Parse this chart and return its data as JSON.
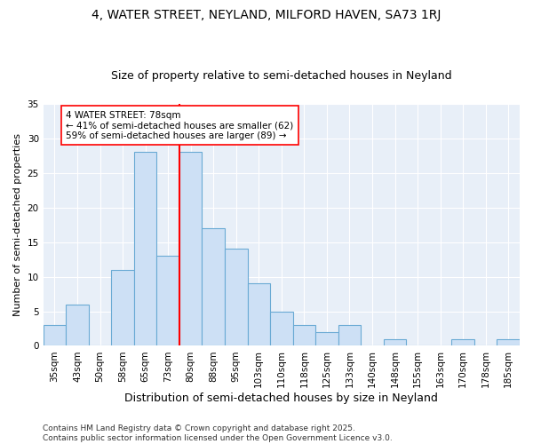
{
  "title1": "4, WATER STREET, NEYLAND, MILFORD HAVEN, SA73 1RJ",
  "title2": "Size of property relative to semi-detached houses in Neyland",
  "xlabel": "Distribution of semi-detached houses by size in Neyland",
  "ylabel": "Number of semi-detached properties",
  "bins": [
    "35sqm",
    "43sqm",
    "50sqm",
    "58sqm",
    "65sqm",
    "73sqm",
    "80sqm",
    "88sqm",
    "95sqm",
    "103sqm",
    "110sqm",
    "118sqm",
    "125sqm",
    "133sqm",
    "140sqm",
    "148sqm",
    "155sqm",
    "163sqm",
    "170sqm",
    "178sqm",
    "185sqm"
  ],
  "values": [
    3,
    6,
    0,
    11,
    28,
    13,
    28,
    17,
    14,
    9,
    5,
    3,
    2,
    3,
    0,
    1,
    0,
    0,
    1,
    0,
    1
  ],
  "bar_color": "#cde0f5",
  "bar_edge_color": "#6aaad4",
  "property_line_bin_index": 6,
  "annotation_text_line1": "4 WATER STREET: 78sqm",
  "annotation_text_line2": "← 41% of semi-detached houses are smaller (62)",
  "annotation_text_line3": "59% of semi-detached houses are larger (89) →",
  "annotation_box_color": "white",
  "annotation_box_edge_color": "red",
  "vline_color": "red",
  "ylim": [
    0,
    35
  ],
  "yticks": [
    0,
    5,
    10,
    15,
    20,
    25,
    30,
    35
  ],
  "bg_color": "#e8eff8",
  "grid_color": "white",
  "footnote": "Contains HM Land Registry data © Crown copyright and database right 2025.\nContains public sector information licensed under the Open Government Licence v3.0.",
  "title1_fontsize": 10,
  "title2_fontsize": 9,
  "xlabel_fontsize": 9,
  "ylabel_fontsize": 8,
  "tick_fontsize": 7.5,
  "annotation_fontsize": 7.5,
  "footnote_fontsize": 6.5
}
